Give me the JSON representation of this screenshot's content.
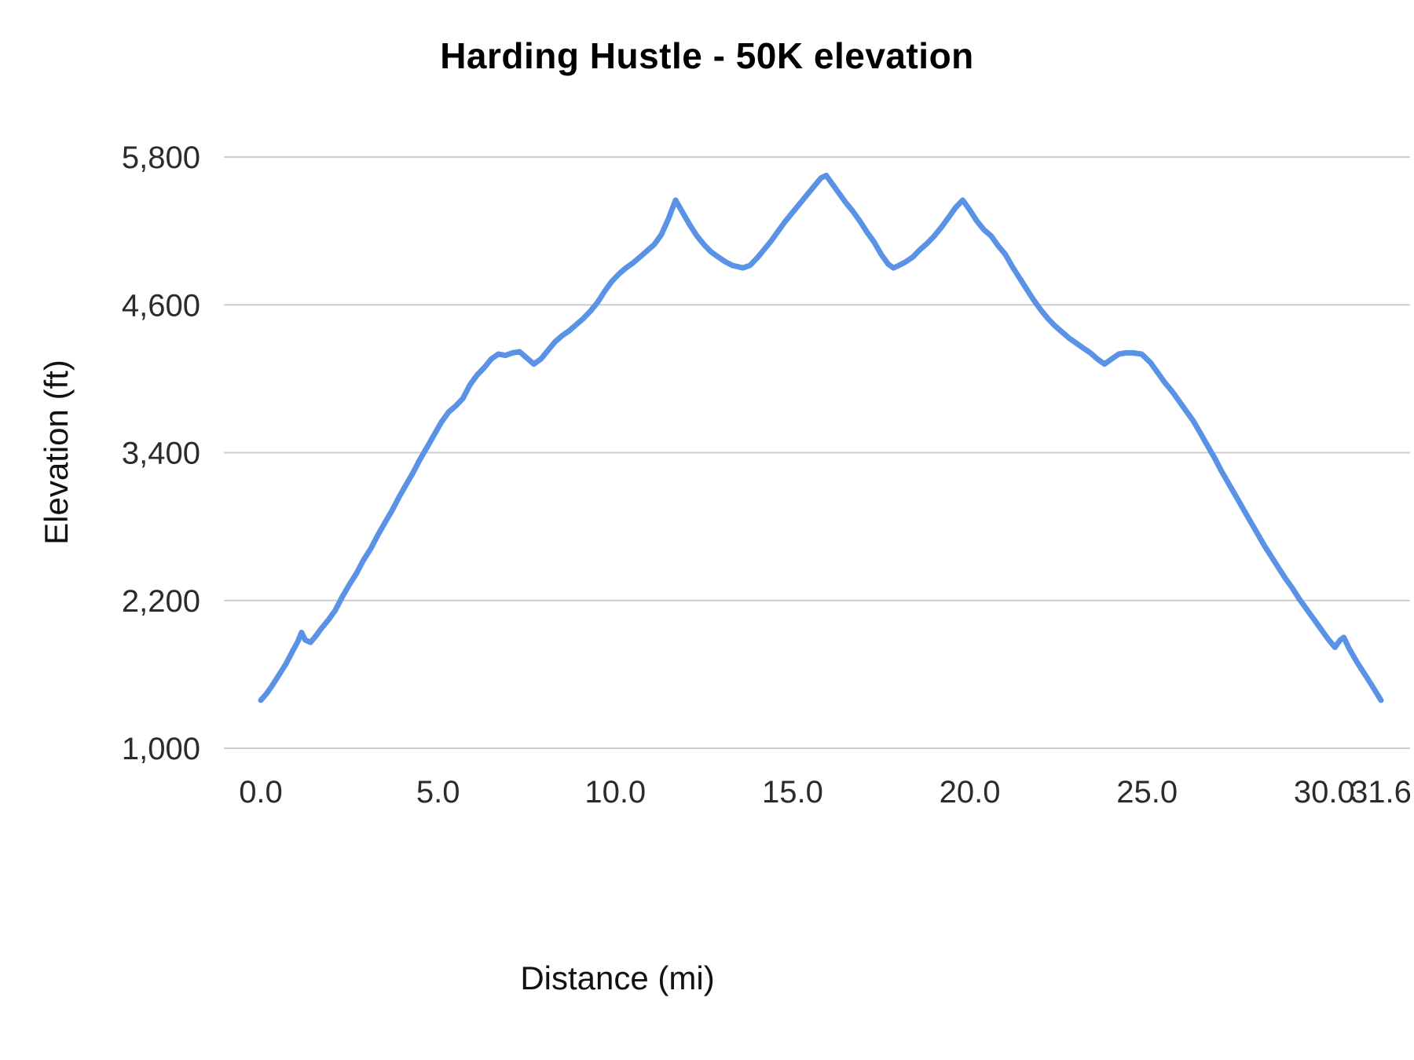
{
  "chart_data": {
    "type": "line",
    "title": "Harding Hustle - 50K elevation",
    "xlabel": "Distance (mi)",
    "ylabel": "Elevation (ft)",
    "xlim": [
      0,
      31.6
    ],
    "ylim": [
      1000,
      5800
    ],
    "grid": "horizontal",
    "legend": "none",
    "line_color": "#5a92e5",
    "grid_color": "#cccccc",
    "yticks": [
      {
        "value": 1000,
        "label": "1,000"
      },
      {
        "value": 2200,
        "label": "2,200"
      },
      {
        "value": 3400,
        "label": "3,400"
      },
      {
        "value": 4600,
        "label": "4,600"
      },
      {
        "value": 5800,
        "label": "5,800"
      }
    ],
    "xticks": [
      {
        "value": 0,
        "label": "0.0"
      },
      {
        "value": 5,
        "label": "5.0"
      },
      {
        "value": 10,
        "label": "10.0"
      },
      {
        "value": 15,
        "label": "15.0"
      },
      {
        "value": 20,
        "label": "20.0"
      },
      {
        "value": 25,
        "label": "25.0"
      },
      {
        "value": 30,
        "label": "30.0"
      },
      {
        "value": 31.6,
        "label": "31.6"
      }
    ],
    "series": [
      {
        "name": "Elevation",
        "points": [
          [
            0,
            1390
          ],
          [
            0.15,
            1440
          ],
          [
            0.3,
            1500
          ],
          [
            0.5,
            1590
          ],
          [
            0.7,
            1680
          ],
          [
            0.9,
            1790
          ],
          [
            1.05,
            1870
          ],
          [
            1.15,
            1940
          ],
          [
            1.25,
            1880
          ],
          [
            1.4,
            1860
          ],
          [
            1.55,
            1910
          ],
          [
            1.7,
            1970
          ],
          [
            1.9,
            2040
          ],
          [
            2.1,
            2120
          ],
          [
            2.3,
            2230
          ],
          [
            2.5,
            2330
          ],
          [
            2.7,
            2420
          ],
          [
            2.9,
            2530
          ],
          [
            3.1,
            2620
          ],
          [
            3.3,
            2730
          ],
          [
            3.5,
            2830
          ],
          [
            3.7,
            2930
          ],
          [
            3.9,
            3040
          ],
          [
            4.1,
            3140
          ],
          [
            4.3,
            3240
          ],
          [
            4.5,
            3350
          ],
          [
            4.7,
            3450
          ],
          [
            4.9,
            3550
          ],
          [
            5.1,
            3650
          ],
          [
            5.3,
            3730
          ],
          [
            5.5,
            3780
          ],
          [
            5.7,
            3840
          ],
          [
            5.9,
            3950
          ],
          [
            6.1,
            4030
          ],
          [
            6.3,
            4090
          ],
          [
            6.5,
            4160
          ],
          [
            6.7,
            4200
          ],
          [
            6.9,
            4190
          ],
          [
            7.1,
            4210
          ],
          [
            7.3,
            4220
          ],
          [
            7.5,
            4170
          ],
          [
            7.7,
            4120
          ],
          [
            7.9,
            4160
          ],
          [
            8.1,
            4230
          ],
          [
            8.3,
            4300
          ],
          [
            8.5,
            4350
          ],
          [
            8.7,
            4390
          ],
          [
            8.9,
            4440
          ],
          [
            9.1,
            4490
          ],
          [
            9.3,
            4550
          ],
          [
            9.5,
            4620
          ],
          [
            9.7,
            4710
          ],
          [
            9.9,
            4790
          ],
          [
            10.1,
            4850
          ],
          [
            10.3,
            4900
          ],
          [
            10.5,
            4940
          ],
          [
            10.7,
            4990
          ],
          [
            10.9,
            5040
          ],
          [
            11.1,
            5090
          ],
          [
            11.3,
            5170
          ],
          [
            11.5,
            5300
          ],
          [
            11.7,
            5450
          ],
          [
            11.9,
            5350
          ],
          [
            12.1,
            5250
          ],
          [
            12.3,
            5160
          ],
          [
            12.5,
            5090
          ],
          [
            12.7,
            5030
          ],
          [
            12.9,
            4990
          ],
          [
            13.1,
            4950
          ],
          [
            13.3,
            4920
          ],
          [
            13.6,
            4900
          ],
          [
            13.8,
            4920
          ],
          [
            14.0,
            4980
          ],
          [
            14.2,
            5050
          ],
          [
            14.4,
            5120
          ],
          [
            14.6,
            5200
          ],
          [
            14.8,
            5280
          ],
          [
            15.0,
            5350
          ],
          [
            15.2,
            5420
          ],
          [
            15.4,
            5490
          ],
          [
            15.6,
            5560
          ],
          [
            15.8,
            5630
          ],
          [
            15.95,
            5650
          ],
          [
            16.1,
            5590
          ],
          [
            16.3,
            5510
          ],
          [
            16.5,
            5430
          ],
          [
            16.7,
            5360
          ],
          [
            16.9,
            5280
          ],
          [
            17.1,
            5190
          ],
          [
            17.3,
            5110
          ],
          [
            17.5,
            5010
          ],
          [
            17.7,
            4930
          ],
          [
            17.85,
            4900
          ],
          [
            18.0,
            4920
          ],
          [
            18.2,
            4950
          ],
          [
            18.4,
            4990
          ],
          [
            18.6,
            5050
          ],
          [
            18.8,
            5100
          ],
          [
            19.0,
            5160
          ],
          [
            19.2,
            5230
          ],
          [
            19.4,
            5310
          ],
          [
            19.6,
            5390
          ],
          [
            19.8,
            5450
          ],
          [
            20.0,
            5370
          ],
          [
            20.2,
            5280
          ],
          [
            20.4,
            5210
          ],
          [
            20.6,
            5160
          ],
          [
            20.8,
            5080
          ],
          [
            21.0,
            5010
          ],
          [
            21.2,
            4910
          ],
          [
            21.4,
            4820
          ],
          [
            21.6,
            4730
          ],
          [
            21.8,
            4640
          ],
          [
            22.0,
            4560
          ],
          [
            22.2,
            4490
          ],
          [
            22.4,
            4430
          ],
          [
            22.6,
            4380
          ],
          [
            22.8,
            4330
          ],
          [
            23.0,
            4290
          ],
          [
            23.2,
            4250
          ],
          [
            23.4,
            4210
          ],
          [
            23.6,
            4160
          ],
          [
            23.8,
            4120
          ],
          [
            24.0,
            4160
          ],
          [
            24.2,
            4200
          ],
          [
            24.4,
            4210
          ],
          [
            24.6,
            4210
          ],
          [
            24.85,
            4200
          ],
          [
            25.1,
            4130
          ],
          [
            25.3,
            4050
          ],
          [
            25.5,
            3970
          ],
          [
            25.7,
            3900
          ],
          [
            25.9,
            3820
          ],
          [
            26.1,
            3740
          ],
          [
            26.3,
            3660
          ],
          [
            26.5,
            3560
          ],
          [
            26.7,
            3460
          ],
          [
            26.9,
            3360
          ],
          [
            27.1,
            3250
          ],
          [
            27.3,
            3150
          ],
          [
            27.5,
            3050
          ],
          [
            27.7,
            2950
          ],
          [
            27.9,
            2850
          ],
          [
            28.1,
            2750
          ],
          [
            28.3,
            2650
          ],
          [
            28.5,
            2560
          ],
          [
            28.7,
            2470
          ],
          [
            28.9,
            2380
          ],
          [
            29.1,
            2300
          ],
          [
            29.3,
            2210
          ],
          [
            29.5,
            2130
          ],
          [
            29.7,
            2050
          ],
          [
            29.9,
            1970
          ],
          [
            30.1,
            1890
          ],
          [
            30.3,
            1820
          ],
          [
            30.45,
            1880
          ],
          [
            30.55,
            1900
          ],
          [
            30.7,
            1810
          ],
          [
            30.9,
            1710
          ],
          [
            31.1,
            1620
          ],
          [
            31.3,
            1530
          ],
          [
            31.45,
            1460
          ],
          [
            31.6,
            1390
          ]
        ]
      }
    ]
  }
}
